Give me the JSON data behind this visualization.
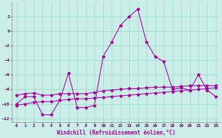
{
  "xlabel": "Windchill (Refroidissement éolien,°C)",
  "background_color": "#cceee8",
  "grid_color": "#99ddcc",
  "line_color": "#aa00aa",
  "xlim": [
    -0.5,
    23.5
  ],
  "ylim": [
    -12.5,
    4.0
  ],
  "yticks": [
    2,
    0,
    -2,
    -4,
    -6,
    -8,
    -10,
    -12
  ],
  "xticks": [
    0,
    1,
    2,
    3,
    4,
    5,
    6,
    7,
    8,
    9,
    10,
    11,
    12,
    13,
    14,
    15,
    16,
    17,
    18,
    19,
    20,
    21,
    22,
    23
  ],
  "series1_x": [
    0,
    1,
    2,
    3,
    4,
    5,
    6,
    7,
    8,
    9,
    10,
    11,
    12,
    13,
    14,
    15,
    16,
    17,
    18,
    19,
    20,
    21,
    22,
    23
  ],
  "series1_y": [
    -10.0,
    -9.0,
    -9.0,
    -11.5,
    -11.5,
    -9.5,
    -5.8,
    -10.5,
    -10.5,
    -10.2,
    -3.5,
    -1.5,
    0.8,
    2.0,
    3.0,
    -1.5,
    -3.5,
    -4.2,
    -8.0,
    -7.8,
    -8.1,
    -6.0,
    -8.1,
    -9.0
  ],
  "series2_x": [
    0,
    1,
    2,
    3,
    4,
    5,
    6,
    7,
    8,
    9,
    10,
    11,
    12,
    13,
    14,
    15,
    16,
    17,
    18,
    19,
    20,
    21,
    22,
    23
  ],
  "series2_y": [
    -8.8,
    -8.6,
    -8.5,
    -8.8,
    -8.8,
    -8.6,
    -8.6,
    -8.6,
    -8.6,
    -8.4,
    -8.2,
    -8.1,
    -8.0,
    -7.9,
    -7.9,
    -7.8,
    -7.7,
    -7.7,
    -7.7,
    -7.6,
    -7.5,
    -7.5,
    -7.5,
    -7.5
  ],
  "series3_x": [
    0,
    1,
    2,
    3,
    4,
    5,
    6,
    7,
    8,
    9,
    10,
    11,
    12,
    13,
    14,
    15,
    16,
    17,
    18,
    19,
    20,
    21,
    22,
    23
  ],
  "series3_y": [
    -10.2,
    -10.0,
    -9.8,
    -9.7,
    -9.7,
    -9.5,
    -9.4,
    -9.3,
    -9.3,
    -9.2,
    -9.1,
    -9.0,
    -8.9,
    -8.8,
    -8.7,
    -8.6,
    -8.5,
    -8.4,
    -8.3,
    -8.2,
    -8.1,
    -8.0,
    -7.9,
    -7.8
  ]
}
